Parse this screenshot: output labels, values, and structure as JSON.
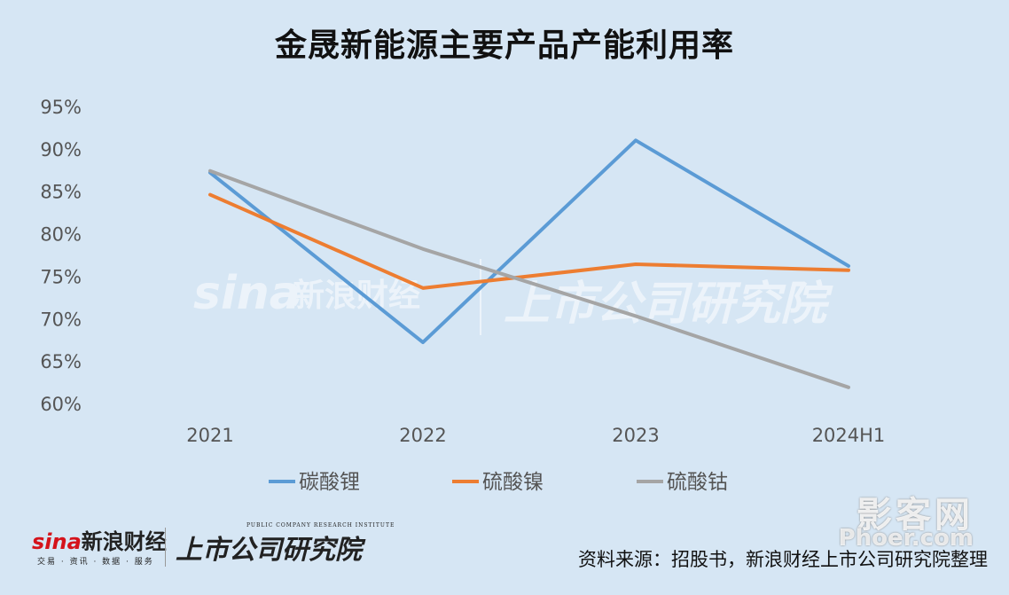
{
  "chart_data": {
    "type": "line",
    "title": "金晟新能源主要产品产能利用率",
    "categories": [
      "2021",
      "2022",
      "2023",
      "2024H1"
    ],
    "yticks": [
      "95%",
      "90%",
      "85%",
      "80%",
      "75%",
      "70%",
      "65%",
      "60%"
    ],
    "ylim": [
      60,
      95
    ],
    "series": [
      {
        "name": "碳酸锂",
        "color": "#5b9bd5",
        "values": [
          87.2,
          67.2,
          91.0,
          76.2
        ]
      },
      {
        "name": "硫酸镍",
        "color": "#ed7d31",
        "values": [
          84.6,
          73.6,
          76.4,
          75.7
        ]
      },
      {
        "name": "硫酸钴",
        "color": "#a5a5a5",
        "values": [
          87.4,
          78.2,
          70.3,
          61.9
        ]
      }
    ],
    "grid": false,
    "legend": "bottom"
  },
  "footer": {
    "source": "资料来源：招股书，新浪财经上市公司研究院整理"
  },
  "logos": {
    "sina_brand": "sina",
    "sina_name": "新浪财经",
    "sina_sub": "交易 · 资讯 · 数据 · 服务",
    "institute": "上市公司研究院",
    "institute_en": "PUBLIC COMPANY RESEARCH INSTITUTE"
  },
  "watermark": {
    "site": "影客网",
    "url": "Phoer.com"
  }
}
